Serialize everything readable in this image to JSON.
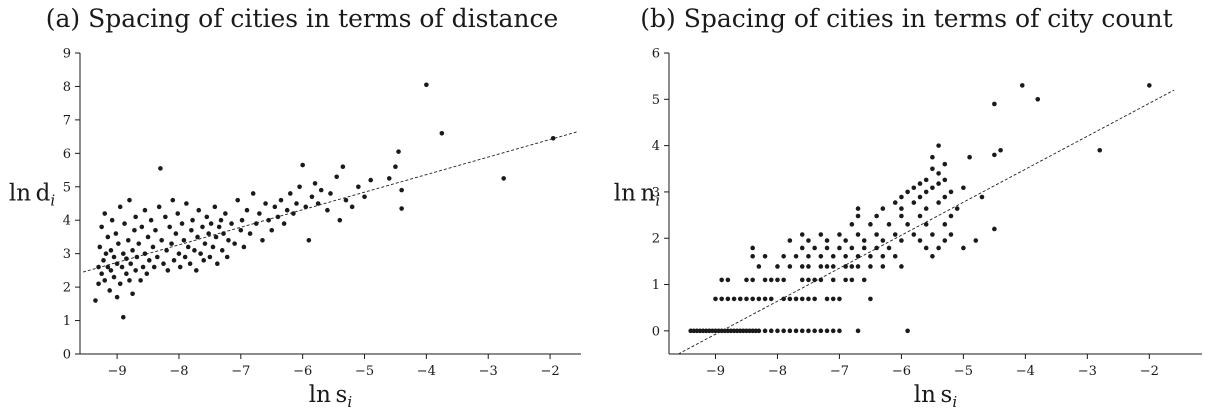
{
  "chart_data": [
    {
      "type": "scatter",
      "title": "(a) Spacing of cities in terms of distance",
      "xlabel_base": "ln s",
      "xlabel_sub": "i",
      "ylabel_base": "ln d",
      "ylabel_sub": "i",
      "xlim": [
        -9.6,
        -1.5
      ],
      "ylim": [
        0,
        9
      ],
      "xticks": [
        -9,
        -8,
        -7,
        -6,
        -5,
        -4,
        -3,
        -2
      ],
      "yticks": [
        0,
        1,
        2,
        3,
        4,
        5,
        6,
        7,
        8,
        9
      ],
      "grid": false,
      "fit_line": {
        "x": [
          -9.55,
          -1.55
        ],
        "y": [
          2.45,
          6.65
        ]
      },
      "points": [
        [
          -9.35,
          1.6
        ],
        [
          -9.3,
          2.1
        ],
        [
          -9.3,
          2.6
        ],
        [
          -9.28,
          3.2
        ],
        [
          -9.25,
          2.4
        ],
        [
          -9.25,
          3.8
        ],
        [
          -9.22,
          2.8
        ],
        [
          -9.2,
          2.2
        ],
        [
          -9.2,
          4.2
        ],
        [
          -9.18,
          3.0
        ],
        [
          -9.15,
          2.6
        ],
        [
          -9.15,
          3.5
        ],
        [
          -9.12,
          1.9
        ],
        [
          -9.1,
          2.5
        ],
        [
          -9.1,
          3.1
        ],
        [
          -9.08,
          4.0
        ],
        [
          -9.05,
          2.3
        ],
        [
          -9.05,
          2.9
        ],
        [
          -9.02,
          3.6
        ],
        [
          -9.0,
          2.7
        ],
        [
          -9.0,
          1.7
        ],
        [
          -8.98,
          3.3
        ],
        [
          -8.95,
          2.1
        ],
        [
          -8.95,
          4.4
        ],
        [
          -8.92,
          2.6
        ],
        [
          -8.9,
          3.0
        ],
        [
          -8.9,
          1.1
        ],
        [
          -8.88,
          3.9
        ],
        [
          -8.85,
          2.4
        ],
        [
          -8.85,
          2.85
        ],
        [
          -8.82,
          3.4
        ],
        [
          -8.8,
          2.2
        ],
        [
          -8.8,
          4.6
        ],
        [
          -8.78,
          2.7
        ],
        [
          -8.75,
          3.1
        ],
        [
          -8.75,
          1.8
        ],
        [
          -8.72,
          3.7
        ],
        [
          -8.7,
          2.5
        ],
        [
          -8.7,
          4.1
        ],
        [
          -8.68,
          2.9
        ],
        [
          -8.65,
          3.3
        ],
        [
          -8.62,
          2.2
        ],
        [
          -8.6,
          3.8
        ],
        [
          -8.58,
          2.6
        ],
        [
          -8.55,
          4.3
        ],
        [
          -8.55,
          3.0
        ],
        [
          -8.52,
          2.4
        ],
        [
          -8.5,
          3.5
        ],
        [
          -8.48,
          2.8
        ],
        [
          -8.45,
          4.0
        ],
        [
          -8.42,
          3.2
        ],
        [
          -8.4,
          2.6
        ],
        [
          -8.38,
          3.7
        ],
        [
          -8.35,
          2.9
        ],
        [
          -8.32,
          4.4
        ],
        [
          -8.3,
          5.55
        ],
        [
          -8.28,
          3.4
        ],
        [
          -8.25,
          2.7
        ],
        [
          -8.22,
          4.1
        ],
        [
          -8.2,
          3.1
        ],
        [
          -8.18,
          2.5
        ],
        [
          -8.15,
          3.8
        ],
        [
          -8.12,
          3.3
        ],
        [
          -8.1,
          4.6
        ],
        [
          -8.08,
          2.8
        ],
        [
          -8.05,
          3.6
        ],
        [
          -8.02,
          4.2
        ],
        [
          -8.0,
          3.0
        ],
        [
          -7.98,
          2.6
        ],
        [
          -7.95,
          3.9
        ],
        [
          -7.92,
          3.4
        ],
        [
          -7.9,
          2.9
        ],
        [
          -7.88,
          4.5
        ],
        [
          -7.85,
          3.2
        ],
        [
          -7.82,
          2.7
        ],
        [
          -7.8,
          3.7
        ],
        [
          -7.78,
          4.0
        ],
        [
          -7.75,
          3.1
        ],
        [
          -7.72,
          2.5
        ],
        [
          -7.7,
          3.5
        ],
        [
          -7.68,
          4.3
        ],
        [
          -7.65,
          3.0
        ],
        [
          -7.62,
          3.8
        ],
        [
          -7.6,
          2.8
        ],
        [
          -7.58,
          3.3
        ],
        [
          -7.55,
          4.1
        ],
        [
          -7.52,
          3.6
        ],
        [
          -7.5,
          2.9
        ],
        [
          -7.48,
          3.9
        ],
        [
          -7.45,
          3.2
        ],
        [
          -7.42,
          4.4
        ],
        [
          -7.4,
          3.5
        ],
        [
          -7.38,
          2.7
        ],
        [
          -7.35,
          3.8
        ],
        [
          -7.32,
          4.0
        ],
        [
          -7.3,
          3.1
        ],
        [
          -7.28,
          3.6
        ],
        [
          -7.25,
          4.2
        ],
        [
          -7.22,
          2.9
        ],
        [
          -7.2,
          3.4
        ],
        [
          -7.15,
          3.9
        ],
        [
          -7.1,
          3.3
        ],
        [
          -7.05,
          4.6
        ],
        [
          -7.0,
          3.7
        ],
        [
          -6.98,
          4.0
        ],
        [
          -6.95,
          3.2
        ],
        [
          -6.9,
          4.3
        ],
        [
          -6.85,
          3.6
        ],
        [
          -6.8,
          4.8
        ],
        [
          -6.75,
          3.9
        ],
        [
          -6.7,
          4.2
        ],
        [
          -6.65,
          3.4
        ],
        [
          -6.6,
          4.5
        ],
        [
          -6.55,
          4.0
        ],
        [
          -6.5,
          3.7
        ],
        [
          -6.45,
          4.4
        ],
        [
          -6.4,
          4.1
        ],
        [
          -6.35,
          4.6
        ],
        [
          -6.3,
          3.9
        ],
        [
          -6.25,
          4.3
        ],
        [
          -6.2,
          4.8
        ],
        [
          -6.15,
          4.2
        ],
        [
          -6.1,
          4.5
        ],
        [
          -6.05,
          5.0
        ],
        [
          -6.0,
          5.65
        ],
        [
          -5.95,
          4.4
        ],
        [
          -5.9,
          3.4
        ],
        [
          -5.85,
          4.7
        ],
        [
          -5.8,
          5.1
        ],
        [
          -5.75,
          4.5
        ],
        [
          -5.7,
          4.9
        ],
        [
          -5.6,
          4.3
        ],
        [
          -5.55,
          4.8
        ],
        [
          -5.45,
          5.3
        ],
        [
          -5.4,
          4.0
        ],
        [
          -5.35,
          5.6
        ],
        [
          -5.3,
          4.6
        ],
        [
          -5.2,
          4.4
        ],
        [
          -5.1,
          5.0
        ],
        [
          -5.0,
          4.7
        ],
        [
          -4.9,
          5.2
        ],
        [
          -4.6,
          5.25
        ],
        [
          -4.5,
          5.6
        ],
        [
          -4.45,
          6.05
        ],
        [
          -4.4,
          4.9
        ],
        [
          -4.4,
          4.35
        ],
        [
          -4.0,
          8.05
        ],
        [
          -3.75,
          6.6
        ],
        [
          -2.75,
          5.25
        ],
        [
          -1.95,
          6.45
        ]
      ]
    },
    {
      "type": "scatter",
      "title": "(b) Spacing of cities in terms of city count",
      "xlabel_base": "ln s",
      "xlabel_sub": "i",
      "ylabel_base": "ln n",
      "ylabel_sub": "i",
      "xlim": [
        -9.75,
        -1.15
      ],
      "ylim": [
        -0.5,
        6
      ],
      "xticks": [
        -9,
        -8,
        -7,
        -6,
        -5,
        -4,
        -3,
        -2
      ],
      "yticks": [
        0,
        1,
        2,
        3,
        4,
        5,
        6
      ],
      "grid": false,
      "fit_line": {
        "x": [
          -9.6,
          -1.6
        ],
        "y": [
          -0.5,
          5.2
        ]
      },
      "points": [
        [
          -9.4,
          0
        ],
        [
          -9.35,
          0
        ],
        [
          -9.3,
          0
        ],
        [
          -9.25,
          0
        ],
        [
          -9.2,
          0
        ],
        [
          -9.15,
          0
        ],
        [
          -9.1,
          0
        ],
        [
          -9.05,
          0
        ],
        [
          -9.0,
          0
        ],
        [
          -8.95,
          0
        ],
        [
          -8.9,
          0
        ],
        [
          -8.85,
          0
        ],
        [
          -8.8,
          0
        ],
        [
          -8.75,
          0
        ],
        [
          -8.7,
          0
        ],
        [
          -8.65,
          0
        ],
        [
          -8.6,
          0
        ],
        [
          -8.55,
          0
        ],
        [
          -8.5,
          0
        ],
        [
          -8.45,
          0
        ],
        [
          -8.4,
          0
        ],
        [
          -8.35,
          0
        ],
        [
          -8.3,
          0
        ],
        [
          -8.2,
          0
        ],
        [
          -8.1,
          0
        ],
        [
          -8.0,
          0
        ],
        [
          -7.9,
          0
        ],
        [
          -7.8,
          0
        ],
        [
          -7.7,
          0
        ],
        [
          -7.6,
          0
        ],
        [
          -7.5,
          0
        ],
        [
          -7.4,
          0
        ],
        [
          -7.3,
          0
        ],
        [
          -7.2,
          0
        ],
        [
          -7.1,
          0
        ],
        [
          -7.0,
          0
        ],
        [
          -6.7,
          0
        ],
        [
          -5.9,
          0
        ],
        [
          -9.0,
          0.69
        ],
        [
          -8.9,
          0.69
        ],
        [
          -8.8,
          0.69
        ],
        [
          -8.7,
          0.69
        ],
        [
          -8.6,
          0.69
        ],
        [
          -8.5,
          0.69
        ],
        [
          -8.4,
          0.69
        ],
        [
          -8.3,
          0.69
        ],
        [
          -8.2,
          0.69
        ],
        [
          -8.1,
          0.69
        ],
        [
          -7.9,
          0.69
        ],
        [
          -7.8,
          0.69
        ],
        [
          -7.7,
          0.69
        ],
        [
          -7.6,
          0.69
        ],
        [
          -7.5,
          0.69
        ],
        [
          -7.4,
          0.69
        ],
        [
          -7.2,
          0.69
        ],
        [
          -7.1,
          0.69
        ],
        [
          -7.0,
          0.69
        ],
        [
          -6.5,
          0.69
        ],
        [
          -8.9,
          1.1
        ],
        [
          -8.8,
          1.1
        ],
        [
          -8.5,
          1.1
        ],
        [
          -8.4,
          1.1
        ],
        [
          -8.2,
          1.1
        ],
        [
          -8.1,
          1.1
        ],
        [
          -8.0,
          1.1
        ],
        [
          -7.9,
          1.1
        ],
        [
          -7.6,
          1.1
        ],
        [
          -7.5,
          1.1
        ],
        [
          -7.4,
          1.1
        ],
        [
          -7.3,
          1.1
        ],
        [
          -7.1,
          1.1
        ],
        [
          -6.9,
          1.1
        ],
        [
          -6.8,
          1.1
        ],
        [
          -6.6,
          1.1
        ],
        [
          -8.3,
          1.39
        ],
        [
          -8.0,
          1.39
        ],
        [
          -7.8,
          1.39
        ],
        [
          -7.6,
          1.39
        ],
        [
          -7.5,
          1.39
        ],
        [
          -7.3,
          1.39
        ],
        [
          -7.2,
          1.39
        ],
        [
          -7.1,
          1.39
        ],
        [
          -6.9,
          1.39
        ],
        [
          -6.8,
          1.39
        ],
        [
          -6.7,
          1.39
        ],
        [
          -6.5,
          1.39
        ],
        [
          -6.3,
          1.39
        ],
        [
          -6.0,
          1.39
        ],
        [
          -8.4,
          1.61
        ],
        [
          -8.2,
          1.61
        ],
        [
          -7.9,
          1.61
        ],
        [
          -7.7,
          1.61
        ],
        [
          -7.5,
          1.61
        ],
        [
          -7.3,
          1.61
        ],
        [
          -7.1,
          1.61
        ],
        [
          -6.9,
          1.61
        ],
        [
          -6.7,
          1.61
        ],
        [
          -6.5,
          1.61
        ],
        [
          -6.3,
          1.61
        ],
        [
          -6.1,
          1.61
        ],
        [
          -5.5,
          1.61
        ],
        [
          -8.4,
          1.79
        ],
        [
          -7.6,
          1.79
        ],
        [
          -7.4,
          1.79
        ],
        [
          -7.2,
          1.79
        ],
        [
          -7.0,
          1.79
        ],
        [
          -6.8,
          1.79
        ],
        [
          -6.6,
          1.79
        ],
        [
          -6.4,
          1.79
        ],
        [
          -6.2,
          1.79
        ],
        [
          -5.6,
          1.79
        ],
        [
          -5.4,
          1.79
        ],
        [
          -5.0,
          1.79
        ],
        [
          -7.8,
          1.95
        ],
        [
          -7.5,
          1.95
        ],
        [
          -7.2,
          1.95
        ],
        [
          -6.9,
          1.95
        ],
        [
          -6.6,
          1.95
        ],
        [
          -6.3,
          1.95
        ],
        [
          -6.0,
          1.95
        ],
        [
          -5.7,
          1.95
        ],
        [
          -5.3,
          1.95
        ],
        [
          -4.8,
          1.95
        ],
        [
          -7.6,
          2.08
        ],
        [
          -7.3,
          2.08
        ],
        [
          -7.0,
          2.08
        ],
        [
          -6.7,
          2.08
        ],
        [
          -6.4,
          2.08
        ],
        [
          -6.1,
          2.08
        ],
        [
          -5.8,
          2.08
        ],
        [
          -5.5,
          2.08
        ],
        [
          -5.2,
          2.08
        ],
        [
          -4.5,
          2.2
        ],
        [
          -6.8,
          2.3
        ],
        [
          -6.5,
          2.3
        ],
        [
          -6.2,
          2.3
        ],
        [
          -5.9,
          2.3
        ],
        [
          -5.6,
          2.3
        ],
        [
          -5.3,
          2.3
        ],
        [
          -6.7,
          2.48
        ],
        [
          -6.4,
          2.48
        ],
        [
          -6.0,
          2.48
        ],
        [
          -5.7,
          2.48
        ],
        [
          -5.2,
          2.48
        ],
        [
          -6.7,
          2.64
        ],
        [
          -6.3,
          2.64
        ],
        [
          -6.0,
          2.64
        ],
        [
          -5.6,
          2.64
        ],
        [
          -5.1,
          2.64
        ],
        [
          -6.1,
          2.77
        ],
        [
          -5.8,
          2.77
        ],
        [
          -5.4,
          2.77
        ],
        [
          -6.0,
          2.89
        ],
        [
          -5.7,
          2.89
        ],
        [
          -5.3,
          2.89
        ],
        [
          -4.7,
          2.89
        ],
        [
          -5.9,
          3.0
        ],
        [
          -5.6,
          3.0
        ],
        [
          -5.2,
          3.0
        ],
        [
          -5.8,
          3.09
        ],
        [
          -5.5,
          3.09
        ],
        [
          -5.0,
          3.09
        ],
        [
          -5.7,
          3.18
        ],
        [
          -5.4,
          3.18
        ],
        [
          -5.6,
          3.26
        ],
        [
          -5.3,
          3.26
        ],
        [
          -5.4,
          3.4
        ],
        [
          -5.5,
          3.5
        ],
        [
          -5.3,
          3.6
        ],
        [
          -5.5,
          3.75
        ],
        [
          -4.9,
          3.75
        ],
        [
          -4.5,
          3.8
        ],
        [
          -5.4,
          4.0
        ],
        [
          -4.4,
          3.9
        ],
        [
          -4.5,
          4.9
        ],
        [
          -4.05,
          5.3
        ],
        [
          -3.8,
          5.0
        ],
        [
          -2.8,
          3.9
        ],
        [
          -2.0,
          5.3
        ]
      ]
    }
  ]
}
